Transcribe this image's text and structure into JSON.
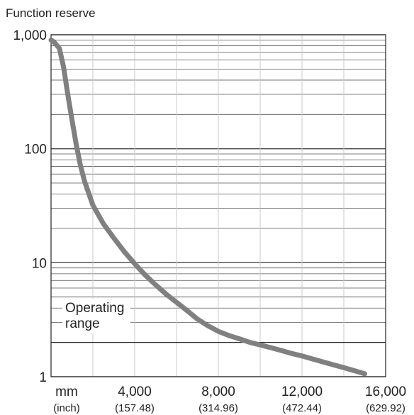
{
  "chart_data": {
    "type": "line",
    "title": "",
    "ylabel": "Function reserve",
    "xlabel": "",
    "x_unit": {
      "primary": "mm",
      "secondary": "(inch)"
    },
    "yscale": "log",
    "xlim": [
      0,
      16000
    ],
    "ylim": [
      1,
      1000
    ],
    "yticks": [
      {
        "value": 1,
        "label": "1"
      },
      {
        "value": 10,
        "label": "10"
      },
      {
        "value": 100,
        "label": "100"
      },
      {
        "value": 1000,
        "label": "1,000"
      }
    ],
    "xticks": [
      {
        "value": 4000,
        "label": "4,000",
        "sublabel": "(157.48)"
      },
      {
        "value": 8000,
        "label": "8,000",
        "sublabel": "(314.96)"
      },
      {
        "value": 12000,
        "label": "12,000",
        "sublabel": "(472.44)"
      },
      {
        "value": 16000,
        "label": "16,000",
        "sublabel": "(629.92)"
      }
    ],
    "grid": true,
    "threshold": {
      "value": 2,
      "label_line1": "Operating",
      "label_line2": "range"
    },
    "series": [
      {
        "color": "#808080",
        "points": [
          [
            0,
            900
          ],
          [
            150,
            860
          ],
          [
            400,
            760
          ],
          [
            600,
            520
          ],
          [
            800,
            300
          ],
          [
            1000,
            180
          ],
          [
            1200,
            110
          ],
          [
            1400,
            72
          ],
          [
            1600,
            52
          ],
          [
            2000,
            32
          ],
          [
            2500,
            22
          ],
          [
            3000,
            16.5
          ],
          [
            3500,
            12.5
          ],
          [
            4000,
            9.8
          ],
          [
            4500,
            7.8
          ],
          [
            5000,
            6.4
          ],
          [
            5500,
            5.3
          ],
          [
            6000,
            4.5
          ],
          [
            6500,
            3.8
          ],
          [
            7000,
            3.2
          ],
          [
            7500,
            2.8
          ],
          [
            8000,
            2.5
          ],
          [
            8500,
            2.3
          ],
          [
            9000,
            2.15
          ],
          [
            9500,
            2.0
          ],
          [
            10000,
            1.9
          ],
          [
            10500,
            1.8
          ],
          [
            11000,
            1.7
          ],
          [
            11500,
            1.6
          ],
          [
            12000,
            1.52
          ],
          [
            12500,
            1.43
          ],
          [
            13000,
            1.35
          ],
          [
            13500,
            1.27
          ],
          [
            14000,
            1.2
          ],
          [
            14500,
            1.13
          ],
          [
            15000,
            1.06
          ]
        ]
      }
    ]
  }
}
